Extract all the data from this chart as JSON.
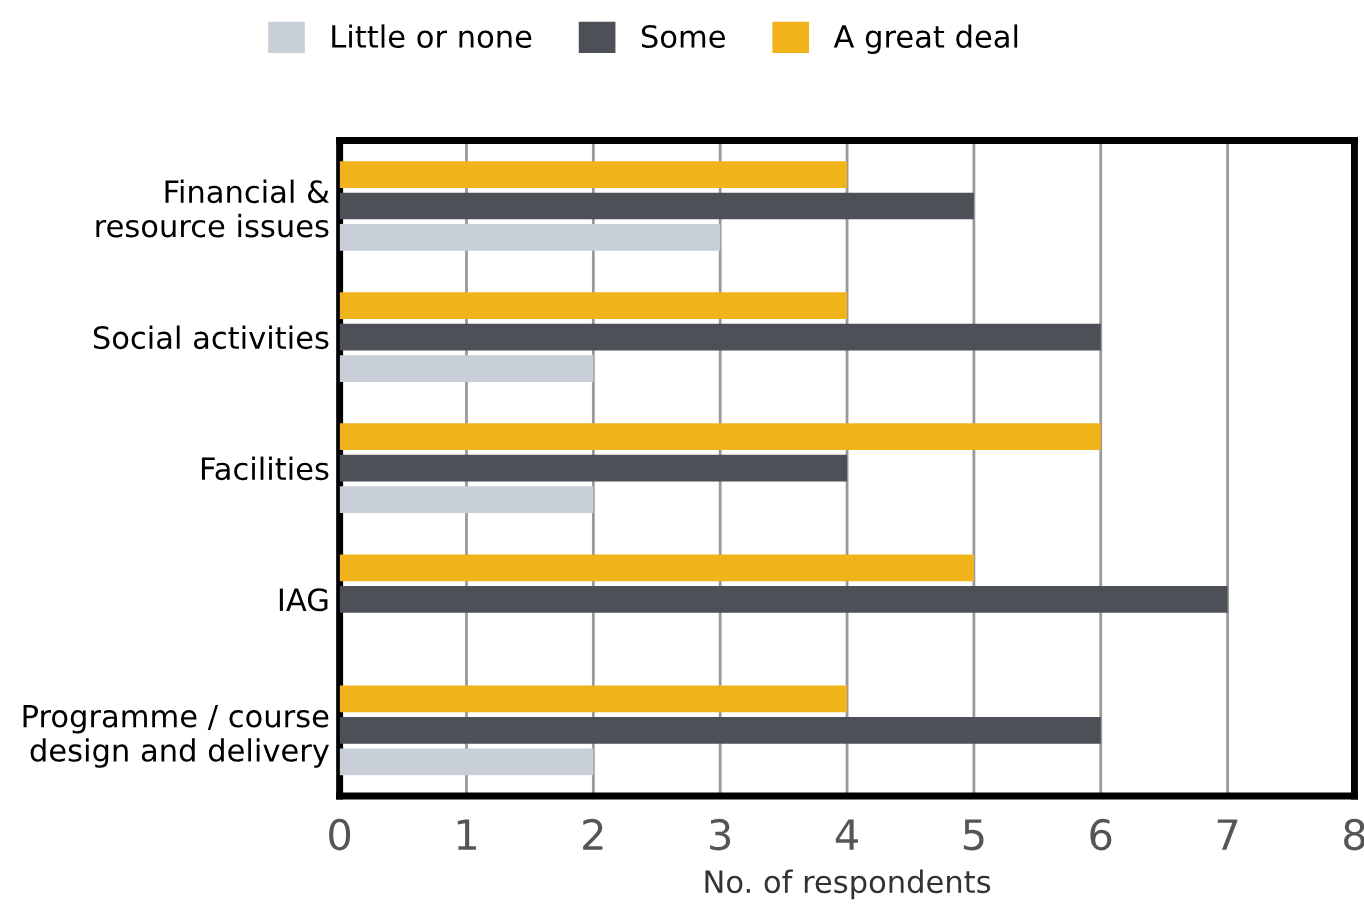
{
  "chart_data": {
    "type": "bar",
    "orientation": "horizontal",
    "xlabel": "No. of respondents",
    "categories": [
      "Financial &\nresource issues",
      "Social activities",
      "Facilities",
      "IAG",
      "Programme / course\ndesign and delivery"
    ],
    "series": [
      {
        "name": "Little or none",
        "color": "#c8cfd6",
        "values": [
          3,
          2,
          2,
          0,
          2
        ]
      },
      {
        "name": "Some",
        "color": "#4d5157",
        "values": [
          5,
          6,
          4,
          7,
          6
        ]
      },
      {
        "name": "A great deal",
        "color": "#f0b31a",
        "values": [
          4,
          4,
          6,
          5,
          4
        ]
      }
    ],
    "xlim": [
      0,
      8
    ],
    "xticks": [
      0,
      1,
      2,
      3,
      4,
      5,
      6,
      7,
      8
    ],
    "grid": "x",
    "legend": "top"
  }
}
